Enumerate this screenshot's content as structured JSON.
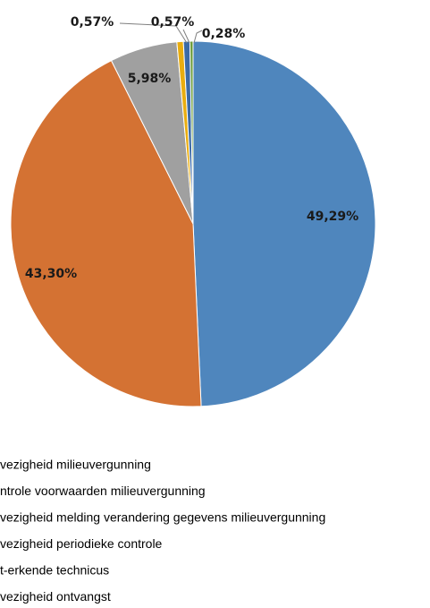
{
  "chart_data": {
    "type": "pie",
    "slices": [
      {
        "label": "Afwezigheid milieuvergunning",
        "value": 49.29,
        "display": "49,29%",
        "color": "#4f86bd"
      },
      {
        "label": "Controle voorwaarden milieuvergunning",
        "value": 43.3,
        "display": "43,30%",
        "color": "#d47233"
      },
      {
        "label": "Afwezigheid melding verandering gegevens milieuvergunning",
        "value": 5.98,
        "display": "5,98%",
        "color": "#a0a0a0"
      },
      {
        "label": "Afwezigheid periodieke controle",
        "value": 0.57,
        "display": "0,57%",
        "color": "#e9ad10"
      },
      {
        "label": "Niet-erkende technicus",
        "value": 0.57,
        "display": "0,57%",
        "color": "#3c6aa6"
      },
      {
        "label": "Afwezigheid ontvangst",
        "value": 0.28,
        "display": "0,28%",
        "color": "#6f9e3d"
      }
    ],
    "legend_text": [
      "vezigheid milieuvergunning",
      "ntrole voorwaarden milieuvergunning",
      "vezigheid melding verandering gegevens milieuvergunning",
      "vezigheid periodieke controle",
      "t-erkende technicus",
      "vezigheid ontvangst"
    ],
    "legend_placement": "bottom"
  }
}
